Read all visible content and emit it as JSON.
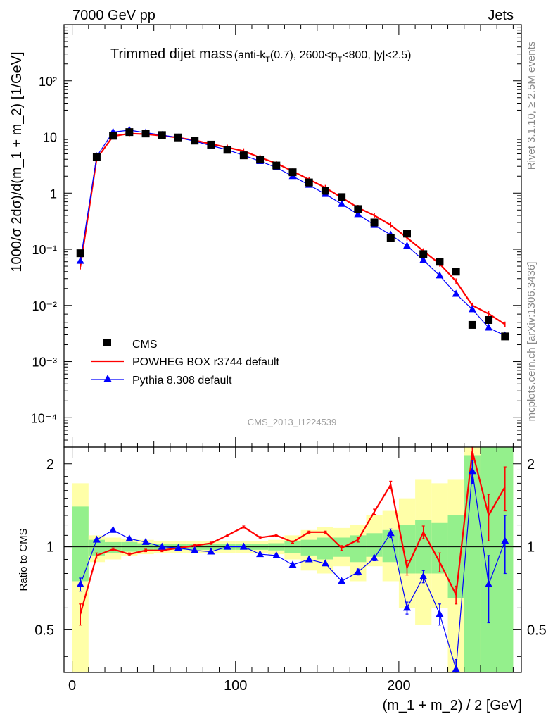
{
  "header": {
    "left": "7000 GeV pp",
    "right": "Jets"
  },
  "side_labels": {
    "rivet": "Rivet 3.1.10, ≥ 2.5M events",
    "mcplots": "mcplots.cern.ch [arXiv:1306.3436]"
  },
  "watermark": "CMS_2013_I1224539",
  "chart_data": {
    "type": "line",
    "title": "Trimmed dijet mass",
    "title_suffix": {
      "pre": "(anti-k",
      "sub1": "T",
      "mid": "(0.7), 2600<p",
      "sub2": "T",
      "post": "<800, |y|<2.5)"
    },
    "xlabel": "(m_1 + m_2) / 2 [GeV]",
    "ylabel": "1000/σ 2dσ)/d(m_1 + m_2) [1/GeV]",
    "xlim": [
      -5,
      275
    ],
    "ylim": [
      3e-05,
      1000
    ],
    "yscale": "log",
    "x_ticks": [
      "0",
      "100",
      "200"
    ],
    "y_ticks": [
      "10⁻⁴",
      "10⁻³",
      "10⁻²",
      "10⁻¹",
      "1",
      "10",
      "10²"
    ],
    "legend_position": "bottom-left",
    "series": [
      {
        "name": "CMS",
        "color": "#000000",
        "marker": "square",
        "x": [
          5,
          15,
          25,
          35,
          45,
          55,
          65,
          75,
          85,
          95,
          105,
          115,
          125,
          135,
          145,
          155,
          165,
          175,
          185,
          195,
          205,
          215,
          225,
          235,
          245,
          255,
          265
        ],
        "y": [
          0.085,
          4.4,
          10.5,
          12.2,
          11.5,
          10.8,
          9.8,
          8.6,
          7.3,
          5.9,
          4.7,
          3.95,
          3.1,
          2.35,
          1.55,
          1.1,
          0.85,
          0.52,
          0.3,
          0.16,
          0.19,
          0.082,
          0.06,
          0.04,
          0.0045,
          0.0055,
          0.0028
        ]
      },
      {
        "name": "POWHEG BOX r3744 default",
        "color": "#ff0000",
        "marker": "none",
        "x": [
          5,
          15,
          25,
          35,
          45,
          55,
          65,
          75,
          85,
          95,
          105,
          115,
          125,
          135,
          145,
          155,
          165,
          175,
          185,
          195,
          205,
          215,
          225,
          235,
          245,
          255,
          265
        ],
        "y": [
          0.049,
          4.1,
          10.3,
          11.5,
          11.2,
          10.5,
          9.7,
          8.7,
          7.5,
          6.5,
          5.6,
          4.3,
          3.4,
          2.45,
          1.75,
          1.25,
          0.83,
          0.55,
          0.4,
          0.27,
          0.16,
          0.093,
          0.055,
          0.027,
          0.01,
          0.0071,
          0.0046
        ]
      },
      {
        "name": "Pythia 8.308 default",
        "color": "#0000ff",
        "marker": "triangle",
        "x": [
          5,
          15,
          25,
          35,
          45,
          55,
          65,
          75,
          85,
          95,
          105,
          115,
          125,
          135,
          145,
          155,
          165,
          175,
          185,
          195,
          205,
          215,
          225,
          235,
          245,
          255,
          265
        ],
        "y": [
          0.062,
          4.5,
          12.2,
          13.2,
          11.9,
          10.8,
          9.7,
          8.4,
          7.0,
          5.9,
          4.7,
          3.7,
          2.85,
          2.0,
          1.4,
          0.96,
          0.64,
          0.42,
          0.27,
          0.18,
          0.115,
          0.064,
          0.034,
          0.016,
          0.0085,
          0.004,
          0.0029
        ]
      }
    ],
    "ratio_panel": {
      "ylabel": "Ratio to CMS",
      "ylim": [
        0.35,
        2.3
      ],
      "y_ticks": [
        0.5,
        1,
        2
      ],
      "bands": [
        {
          "x0": 0,
          "x1": 10,
          "yellow": [
            0.35,
            1.7
          ],
          "green": [
            0.75,
            1.4
          ]
        },
        {
          "x0": 10,
          "x1": 20,
          "yellow": [
            0.88,
            1.1
          ],
          "green": [
            0.93,
            1.06
          ]
        },
        {
          "x0": 20,
          "x1": 30,
          "yellow": [
            0.9,
            1.08
          ],
          "green": [
            0.95,
            1.04
          ]
        },
        {
          "x0": 30,
          "x1": 40,
          "yellow": [
            0.93,
            1.07
          ],
          "green": [
            0.96,
            1.04
          ]
        },
        {
          "x0": 40,
          "x1": 50,
          "yellow": [
            0.94,
            1.06
          ],
          "green": [
            0.97,
            1.03
          ]
        },
        {
          "x0": 50,
          "x1": 60,
          "yellow": [
            0.95,
            1.05
          ],
          "green": [
            0.975,
            1.025
          ]
        },
        {
          "x0": 60,
          "x1": 70,
          "yellow": [
            0.95,
            1.05
          ],
          "green": [
            0.975,
            1.025
          ]
        },
        {
          "x0": 70,
          "x1": 80,
          "yellow": [
            0.95,
            1.05
          ],
          "green": [
            0.975,
            1.025
          ]
        },
        {
          "x0": 80,
          "x1": 90,
          "yellow": [
            0.95,
            1.05
          ],
          "green": [
            0.975,
            1.025
          ]
        },
        {
          "x0": 90,
          "x1": 100,
          "yellow": [
            0.95,
            1.05
          ],
          "green": [
            0.975,
            1.025
          ]
        },
        {
          "x0": 100,
          "x1": 110,
          "yellow": [
            0.95,
            1.05
          ],
          "green": [
            0.975,
            1.025
          ]
        },
        {
          "x0": 110,
          "x1": 120,
          "yellow": [
            0.95,
            1.05
          ],
          "green": [
            0.975,
            1.025
          ]
        },
        {
          "x0": 120,
          "x1": 130,
          "yellow": [
            0.94,
            1.06
          ],
          "green": [
            0.97,
            1.03
          ]
        },
        {
          "x0": 130,
          "x1": 140,
          "yellow": [
            0.9,
            1.1
          ],
          "green": [
            0.95,
            1.05
          ]
        },
        {
          "x0": 140,
          "x1": 150,
          "yellow": [
            0.82,
            1.15
          ],
          "green": [
            0.93,
            1.06
          ]
        },
        {
          "x0": 150,
          "x1": 160,
          "yellow": [
            0.8,
            1.18
          ],
          "green": [
            0.9,
            1.08
          ]
        },
        {
          "x0": 160,
          "x1": 170,
          "yellow": [
            0.85,
            1.17
          ],
          "green": [
            0.92,
            1.08
          ]
        },
        {
          "x0": 170,
          "x1": 180,
          "yellow": [
            0.75,
            1.2
          ],
          "green": [
            0.88,
            1.1
          ]
        },
        {
          "x0": 180,
          "x1": 190,
          "yellow": [
            0.85,
            1.3
          ],
          "green": [
            0.92,
            1.12
          ]
        },
        {
          "x0": 190,
          "x1": 200,
          "yellow": [
            0.75,
            1.35
          ],
          "green": [
            0.88,
            1.15
          ]
        },
        {
          "x0": 200,
          "x1": 210,
          "yellow": [
            0.6,
            1.5
          ],
          "green": [
            0.8,
            1.2
          ]
        },
        {
          "x0": 210,
          "x1": 220,
          "yellow": [
            0.52,
            1.75
          ],
          "green": [
            0.8,
            1.25
          ]
        },
        {
          "x0": 220,
          "x1": 230,
          "yellow": [
            0.6,
            1.7
          ],
          "green": [
            0.8,
            1.22
          ]
        },
        {
          "x0": 230,
          "x1": 240,
          "yellow": [
            0.35,
            1.75
          ],
          "green": [
            0.65,
            1.3
          ]
        },
        {
          "x0": 240,
          "x1": 250,
          "yellow": [
            0.35,
            2.3
          ],
          "green": [
            0.35,
            2.15
          ]
        },
        {
          "x0": 250,
          "x1": 260,
          "yellow": [
            0.35,
            2.3
          ],
          "green": [
            0.35,
            2.3
          ]
        },
        {
          "x0": 260,
          "x1": 270,
          "yellow": [
            0.35,
            2.3
          ],
          "green": [
            0.35,
            2.3
          ]
        }
      ],
      "ratios": [
        {
          "name": "POWHEG BOX r3744 default",
          "color": "#ff0000",
          "x": [
            5,
            15,
            25,
            35,
            45,
            55,
            65,
            75,
            85,
            95,
            105,
            115,
            125,
            135,
            145,
            155,
            165,
            175,
            185,
            195,
            205,
            215,
            225,
            235,
            245,
            255,
            265
          ],
          "y": [
            0.57,
            0.93,
            0.98,
            0.94,
            0.97,
            0.97,
            0.99,
            1.01,
            1.03,
            1.1,
            1.18,
            1.08,
            1.1,
            1.04,
            1.13,
            1.13,
            0.99,
            1.06,
            1.34,
            1.68,
            0.84,
            1.13,
            0.88,
            0.67,
            2.22,
            1.3,
            1.65
          ],
          "err": [
            0.05,
            0.02,
            0.01,
            0.01,
            0.01,
            0.01,
            0.01,
            0.01,
            0.01,
            0.01,
            0.01,
            0.01,
            0.01,
            0.01,
            0.01,
            0.01,
            0.02,
            0.02,
            0.03,
            0.05,
            0.05,
            0.06,
            0.07,
            0.05,
            0.2,
            0.25,
            0.3
          ]
        },
        {
          "name": "Pythia 8.308 default",
          "color": "#0000ff",
          "x": [
            5,
            15,
            25,
            35,
            45,
            55,
            65,
            75,
            85,
            95,
            105,
            115,
            125,
            135,
            145,
            155,
            165,
            175,
            185,
            195,
            205,
            215,
            225,
            235,
            245,
            255,
            265
          ],
          "y": [
            0.73,
            1.06,
            1.15,
            1.07,
            1.04,
            1.0,
            0.99,
            0.97,
            0.96,
            1.0,
            1.0,
            0.94,
            0.93,
            0.86,
            0.9,
            0.87,
            0.75,
            0.81,
            0.91,
            1.12,
            0.6,
            0.78,
            0.57,
            0.36,
            1.88,
            0.73,
            1.05
          ],
          "err": [
            0.04,
            0.01,
            0.01,
            0.01,
            0.01,
            0.01,
            0.01,
            0.01,
            0.01,
            0.01,
            0.01,
            0.01,
            0.01,
            0.01,
            0.01,
            0.01,
            0.01,
            0.02,
            0.02,
            0.04,
            0.03,
            0.04,
            0.05,
            0.03,
            0.18,
            0.2,
            0.25
          ]
        }
      ]
    }
  }
}
